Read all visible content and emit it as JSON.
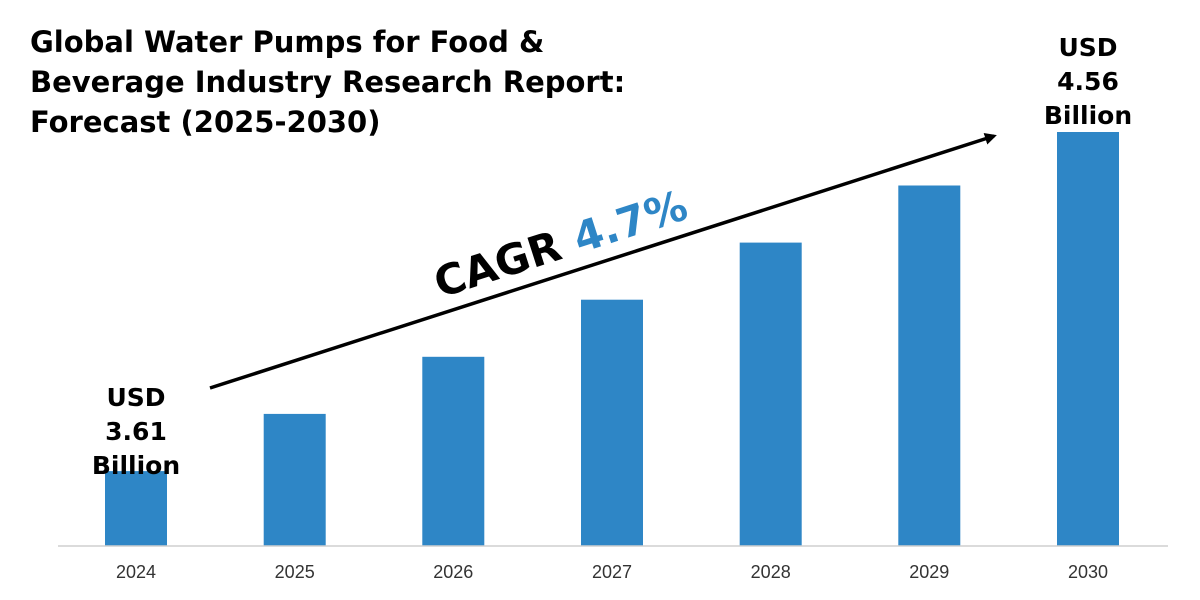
{
  "chart_data": {
    "type": "bar",
    "title_lines": [
      "Global Water Pumps for Food &",
      "Beverage Industry Research Report:",
      "Forecast (2025-2030)"
    ],
    "categories": [
      "2024",
      "2025",
      "2026",
      "2027",
      "2028",
      "2029",
      "2030"
    ],
    "values": [
      3.61,
      3.77,
      3.93,
      4.09,
      4.25,
      4.41,
      4.56
    ],
    "ylim": [
      3.4,
      4.56
    ],
    "bar_color": "#2e86c6",
    "grid": false,
    "start_label": [
      "USD",
      "3.61",
      "Billion"
    ],
    "end_label": [
      "USD",
      "4.56",
      "Billion"
    ],
    "cagr": {
      "word": "CAGR",
      "value": "4.7%",
      "value_color": "#2e86c6"
    }
  }
}
